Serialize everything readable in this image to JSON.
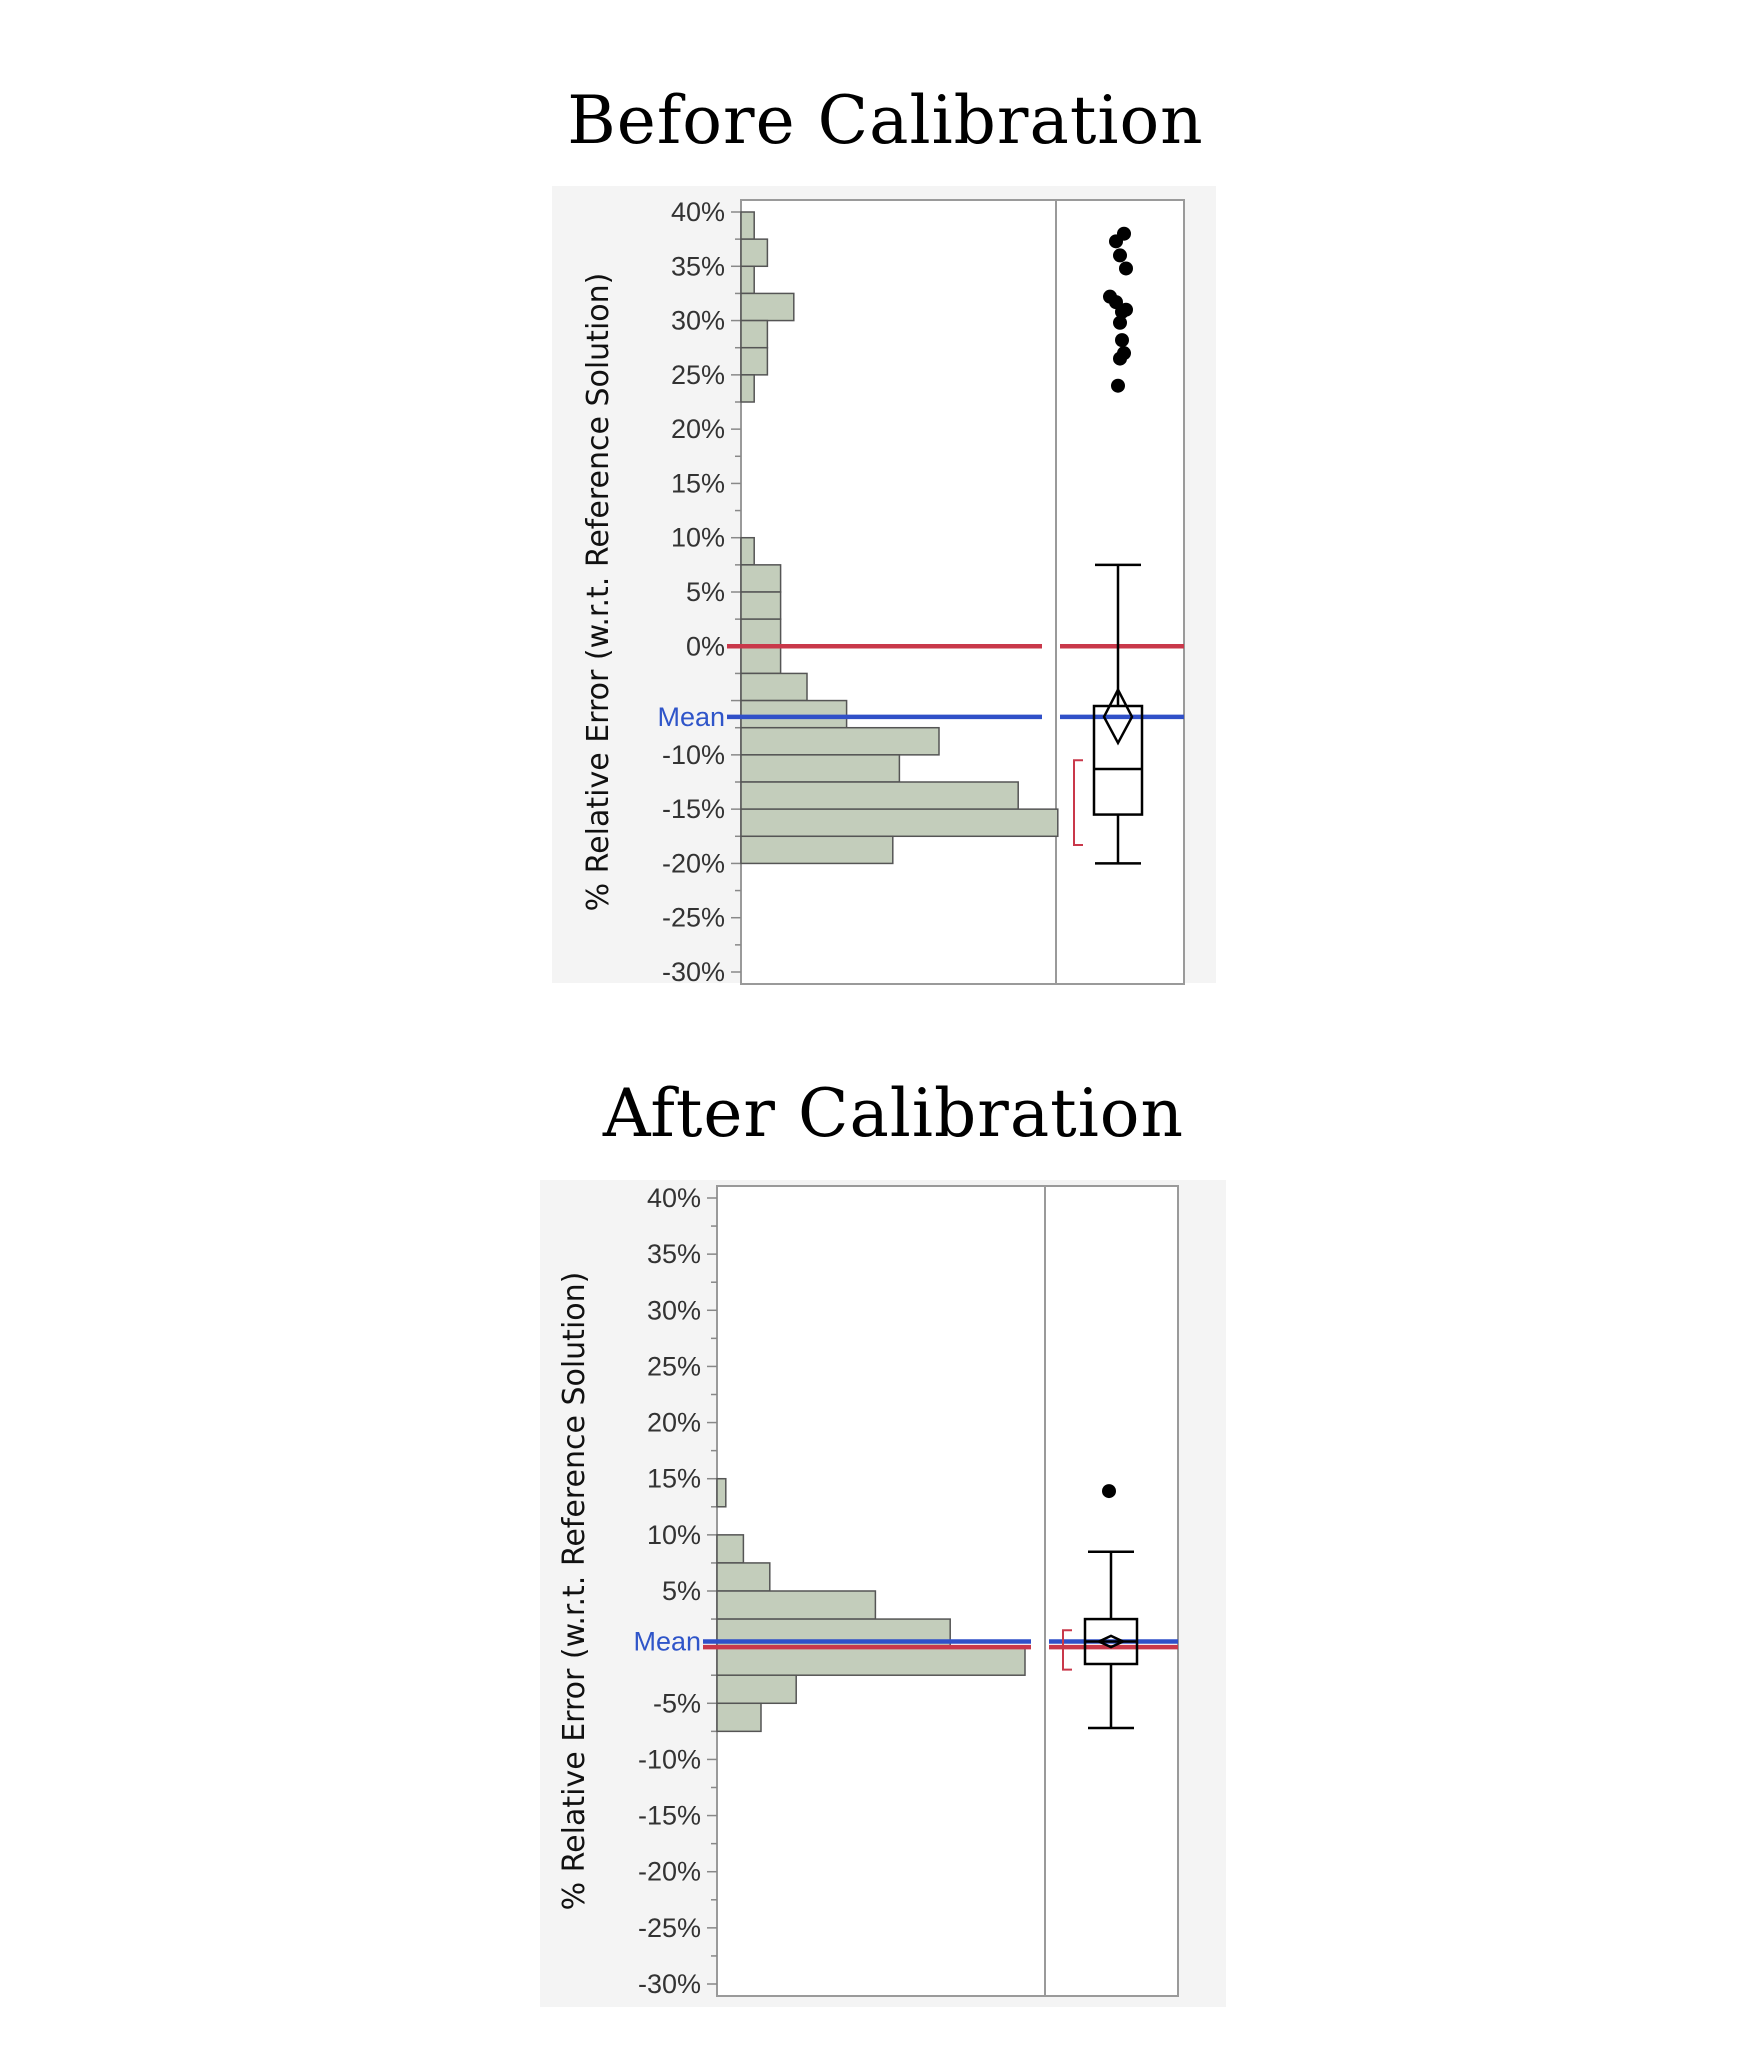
{
  "titles": {
    "before": "Before Calibration",
    "after": "After Calibration"
  },
  "colors": {
    "bar_fill": "#c3cdbb",
    "bar_stroke": "#555555",
    "zero_line": "#c9384a",
    "mean_line": "#3050c8",
    "panel_bg": "#f4f4f4",
    "frame": "#9a9a9a"
  },
  "chart_data": [
    {
      "type": "histogram",
      "title": "Before Calibration",
      "ylabel": "% Relative Error  (w.r.t. Reference Solution)",
      "ylim": [
        -30,
        40
      ],
      "yticks": [
        40,
        35,
        30,
        25,
        20,
        15,
        10,
        5,
        0,
        -10,
        -15,
        -20,
        -25,
        -30
      ],
      "tick_format": "percent",
      "mean_label": "Mean",
      "mean": -6.5,
      "zero_line": 0,
      "bins": [
        {
          "from": 37.5,
          "to": 40,
          "count": 1
        },
        {
          "from": 35,
          "to": 37.5,
          "count": 2
        },
        {
          "from": 32.5,
          "to": 35,
          "count": 1
        },
        {
          "from": 30,
          "to": 32.5,
          "count": 4
        },
        {
          "from": 27.5,
          "to": 30,
          "count": 2
        },
        {
          "from": 25,
          "to": 27.5,
          "count": 2
        },
        {
          "from": 22.5,
          "to": 25,
          "count": 1
        },
        {
          "from": 7.5,
          "to": 10,
          "count": 1
        },
        {
          "from": 5,
          "to": 7.5,
          "count": 3
        },
        {
          "from": 2.5,
          "to": 5,
          "count": 3
        },
        {
          "from": 0,
          "to": 2.5,
          "count": 3
        },
        {
          "from": -2.5,
          "to": 0,
          "count": 3
        },
        {
          "from": -5,
          "to": -2.5,
          "count": 5
        },
        {
          "from": -7.5,
          "to": -5,
          "count": 8
        },
        {
          "from": -10,
          "to": -7.5,
          "count": 15
        },
        {
          "from": -12.5,
          "to": -10,
          "count": 12
        },
        {
          "from": -15,
          "to": -12.5,
          "count": 21
        },
        {
          "from": -17.5,
          "to": -15,
          "count": 24
        },
        {
          "from": -20,
          "to": -17.5,
          "count": 11.5
        }
      ],
      "boxplot": {
        "whisker_low": -20,
        "q1": -15.5,
        "median": -11.3,
        "q3": -5.5,
        "whisker_high": 7.5,
        "mean": -6.5,
        "mean_ci": [
          -8.9,
          -4.0
        ],
        "shortest_half": [
          -10.5,
          -18.3
        ],
        "outliers": [
          38,
          37.3,
          36,
          34.8,
          32.2,
          31.7,
          31,
          30.8,
          29.8,
          28.2,
          27,
          26.5,
          24
        ]
      }
    },
    {
      "type": "histogram",
      "title": "After Calibration",
      "ylabel": "% Relative Error  (w.r.t. Reference Solution)",
      "ylim": [
        -30,
        40
      ],
      "yticks": [
        40,
        35,
        30,
        25,
        20,
        15,
        10,
        5,
        -5,
        -10,
        -15,
        -20,
        -25,
        -30
      ],
      "tick_format": "percent",
      "mean_label": "Mean",
      "mean": 0.5,
      "zero_line": 0,
      "bins": [
        {
          "from": 12.5,
          "to": 15,
          "count": 1
        },
        {
          "from": 7.5,
          "to": 10,
          "count": 3
        },
        {
          "from": 5,
          "to": 7.5,
          "count": 6
        },
        {
          "from": 2.5,
          "to": 5,
          "count": 18
        },
        {
          "from": 0,
          "to": 2.5,
          "count": 26.5
        },
        {
          "from": -2.5,
          "to": 0,
          "count": 35
        },
        {
          "from": -5,
          "to": -2.5,
          "count": 9
        },
        {
          "from": -7.5,
          "to": -5,
          "count": 5
        }
      ],
      "boxplot": {
        "whisker_low": -7.2,
        "q1": -1.5,
        "median": 0.5,
        "q3": 2.5,
        "whisker_high": 8.5,
        "mean": 0.5,
        "mean_ci": [
          0,
          1
        ],
        "shortest_half": [
          1.5,
          -2
        ],
        "outliers": [
          13.9
        ]
      }
    }
  ]
}
